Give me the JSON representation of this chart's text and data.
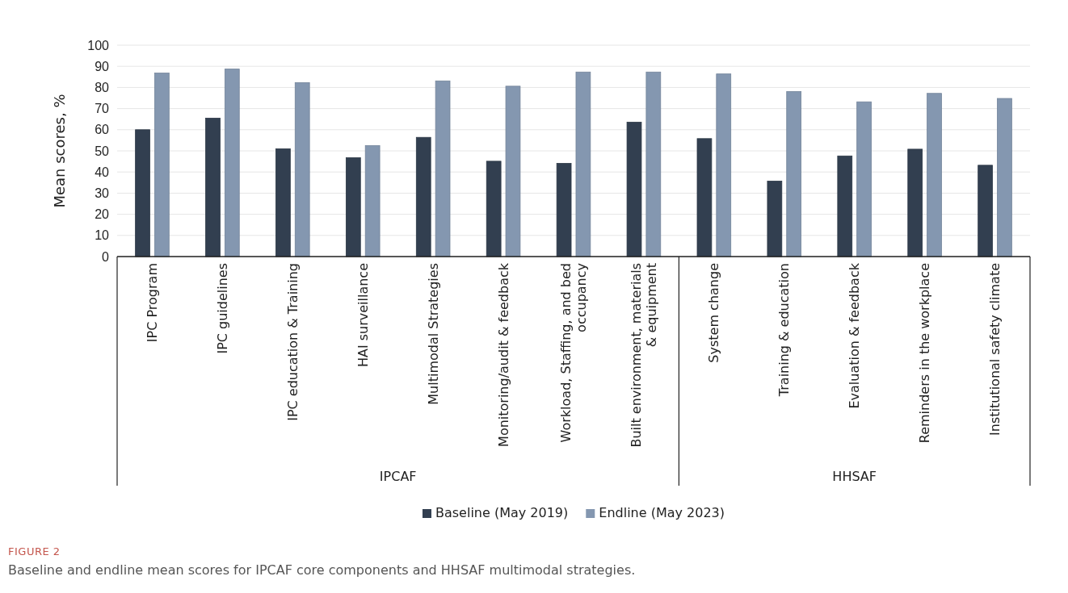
{
  "chart_data": {
    "type": "bar",
    "title": "FIGURE 2",
    "subtitle": "Baseline and endline mean scores for IPCAF core components and HHSAF multimodal strategies.",
    "ylabel": "Mean scores, %",
    "categories": [
      "IPC Program",
      "IPC guidelines",
      "IPC education & Training",
      "HAI surveillance",
      "Multimodal Strategies",
      "Monitoring/audit & feedback",
      "Workload, Staffing, and bed occupancy",
      "Built environment, materials & equipment",
      "System change",
      "Training & education",
      "Evaluation & feedback",
      "Reminders in the workplace",
      "Institutional safety climate"
    ],
    "series": [
      {
        "name": "Baseline (May 2019)",
        "color": "#323f50",
        "values": [
          60.0,
          65.5,
          51.0,
          46.8,
          56.4,
          45.1,
          44.1,
          63.6,
          55.8,
          35.7,
          47.6,
          50.8,
          43.2
        ]
      },
      {
        "name": "Endline (May 2023)",
        "color": "#8497b0",
        "values": [
          86.8,
          88.7,
          82.3,
          52.5,
          83.1,
          80.6,
          87.3,
          87.3,
          86.4,
          78.1,
          73.2,
          77.2,
          74.8
        ]
      }
    ],
    "annotations": [
      "IPCAF",
      "HHSAF"
    ],
    "ylim": [
      0,
      100
    ],
    "yticks": [
      0,
      10,
      20,
      30,
      40,
      50,
      60,
      70,
      80,
      90,
      100
    ],
    "grid": "y",
    "legend": "bottom"
  }
}
